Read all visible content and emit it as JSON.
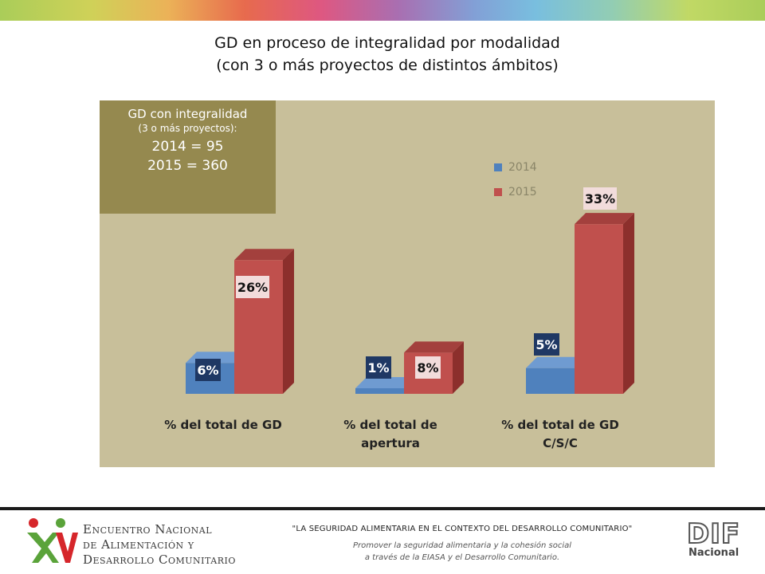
{
  "title": {
    "line1": "GD en proceso de integralidad por modalidad",
    "line2": "(con 3 o más proyectos de distintos ámbitos)"
  },
  "info_box": {
    "line1": "GD con integralidad",
    "line2": "(3 o más proyectos):",
    "line3": "2014 = 95",
    "line4": "2015 = 360"
  },
  "colors": {
    "panel": "#c8bf9a",
    "info_box": "#95894f",
    "series_2014": "#4f81bd",
    "series_2015": "#c0504d"
  },
  "chart_data": {
    "type": "bar",
    "categories": [
      "% del total de GD",
      "% del total de\napertura",
      "% del total de GD\nC/S/C"
    ],
    "series": [
      {
        "name": "2014",
        "values": [
          6,
          1,
          5
        ],
        "labels": [
          "6%",
          "1%",
          "5%"
        ]
      },
      {
        "name": "2015",
        "values": [
          26,
          8,
          33
        ],
        "labels": [
          "26%",
          "8%",
          "33%"
        ]
      }
    ],
    "ylim": [
      0,
      36
    ],
    "legend_position": "top-right",
    "grid": false
  },
  "footer": {
    "event_line1": "Encuentro Nacional",
    "event_line2": "de Alimentación y",
    "event_line3": "Desarrollo Comunitario",
    "motto": "\"LA SEGURIDAD ALIMENTARIA EN EL CONTEXTO DEL DESARROLLO COMUNITARIO\"",
    "motto_sub1": "Promover la seguridad alimentaria y la cohesión social",
    "motto_sub2": "a través de la EIASA y el Desarrollo Comunitario.",
    "dif_word": "DIF",
    "dif_sub": "Nacional"
  }
}
